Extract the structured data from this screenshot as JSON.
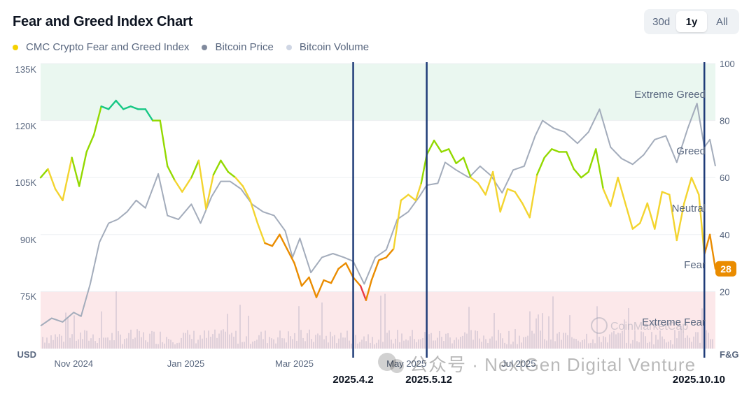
{
  "header": {
    "title": "Fear and Greed Index Chart",
    "ranges": [
      "30d",
      "1y",
      "All"
    ],
    "active_range": "1y"
  },
  "legend": [
    {
      "label": "CMC Crypto Fear and Greed Index",
      "color": "#f5d100"
    },
    {
      "label": "Bitcoin Price",
      "color": "#808a9d"
    },
    {
      "label": "Bitcoin Volume",
      "color": "#cfd6e4"
    }
  ],
  "chart_data": {
    "type": "line",
    "left_axis": {
      "unit": "USD",
      "ticks": [
        "135K",
        "120K",
        "105K",
        "90K",
        "75K"
      ],
      "range": [
        60000,
        135000
      ]
    },
    "right_axis": {
      "unit": "F&G",
      "ticks": [
        "100",
        "80",
        "60",
        "40",
        "20"
      ],
      "range": [
        0,
        100
      ]
    },
    "x_ticks": [
      {
        "label": "Nov 2024",
        "date": "2024-11-01"
      },
      {
        "label": "Jan 2025",
        "date": "2025-01-01"
      },
      {
        "label": "Mar 2025",
        "date": "2025-03-01"
      },
      {
        "label": "May 2025",
        "date": "2025-05-01"
      },
      {
        "label": "Jul 2025",
        "date": "2025-07-01"
      }
    ],
    "x_range": [
      "2024-10-14",
      "2025-10-16"
    ],
    "zones": [
      {
        "label": "Extreme Greed",
        "from": 80,
        "to": 100,
        "color": "#eaf7f0"
      },
      {
        "label": "Greed",
        "from": 60,
        "to": 80,
        "color": "#ffffff"
      },
      {
        "label": "Neutral",
        "from": 40,
        "to": 60,
        "color": "#ffffff"
      },
      {
        "label": "Fear",
        "from": 20,
        "to": 40,
        "color": "#ffffff"
      },
      {
        "label": "Extreme Fear",
        "from": 0,
        "to": 20,
        "color": "#fce8ea"
      }
    ],
    "current_value": "28",
    "series": [
      {
        "name": "CMC Crypto Fear and Greed Index",
        "axis": "right",
        "points": [
          [
            "2024-10-14",
            60
          ],
          [
            "2024-10-18",
            63
          ],
          [
            "2024-10-22",
            56
          ],
          [
            "2024-10-26",
            52
          ],
          [
            "2024-10-31",
            67
          ],
          [
            "2024-11-04",
            57
          ],
          [
            "2024-11-08",
            69
          ],
          [
            "2024-11-12",
            75
          ],
          [
            "2024-11-16",
            85
          ],
          [
            "2024-11-20",
            84
          ],
          [
            "2024-11-24",
            87
          ],
          [
            "2024-11-28",
            84
          ],
          [
            "2024-12-02",
            85
          ],
          [
            "2024-12-06",
            84
          ],
          [
            "2024-12-10",
            84
          ],
          [
            "2024-12-14",
            80
          ],
          [
            "2024-12-18",
            80
          ],
          [
            "2024-12-22",
            64
          ],
          [
            "2024-12-26",
            59
          ],
          [
            "2024-12-30",
            55
          ],
          [
            "2025-01-04",
            60
          ],
          [
            "2025-01-08",
            66
          ],
          [
            "2025-01-12",
            49
          ],
          [
            "2025-01-16",
            61
          ],
          [
            "2025-01-20",
            66
          ],
          [
            "2025-01-24",
            62
          ],
          [
            "2025-01-28",
            60
          ],
          [
            "2025-02-01",
            57
          ],
          [
            "2025-02-05",
            52
          ],
          [
            "2025-02-09",
            44
          ],
          [
            "2025-02-13",
            37
          ],
          [
            "2025-02-17",
            36
          ],
          [
            "2025-02-21",
            40
          ],
          [
            "2025-02-25",
            35
          ],
          [
            "2025-03-01",
            30
          ],
          [
            "2025-03-05",
            22
          ],
          [
            "2025-03-09",
            25
          ],
          [
            "2025-03-13",
            18
          ],
          [
            "2025-03-17",
            24
          ],
          [
            "2025-03-21",
            23
          ],
          [
            "2025-03-25",
            28
          ],
          [
            "2025-03-29",
            30
          ],
          [
            "2025-04-02",
            25
          ],
          [
            "2025-04-06",
            22
          ],
          [
            "2025-04-09",
            17
          ],
          [
            "2025-04-12",
            24
          ],
          [
            "2025-04-16",
            31
          ],
          [
            "2025-04-20",
            32
          ],
          [
            "2025-04-24",
            35
          ],
          [
            "2025-04-28",
            52
          ],
          [
            "2025-05-02",
            54
          ],
          [
            "2025-05-06",
            52
          ],
          [
            "2025-05-09",
            58
          ],
          [
            "2025-05-12",
            68
          ],
          [
            "2025-05-16",
            73
          ],
          [
            "2025-05-20",
            69
          ],
          [
            "2025-05-24",
            70
          ],
          [
            "2025-05-28",
            65
          ],
          [
            "2025-06-01",
            67
          ],
          [
            "2025-06-05",
            60
          ],
          [
            "2025-06-09",
            58
          ],
          [
            "2025-06-13",
            54
          ],
          [
            "2025-06-17",
            62
          ],
          [
            "2025-06-21",
            48
          ],
          [
            "2025-06-25",
            56
          ],
          [
            "2025-06-29",
            55
          ],
          [
            "2025-07-03",
            51
          ],
          [
            "2025-07-07",
            46
          ],
          [
            "2025-07-11",
            61
          ],
          [
            "2025-07-15",
            67
          ],
          [
            "2025-07-19",
            70
          ],
          [
            "2025-07-23",
            69
          ],
          [
            "2025-07-27",
            69
          ],
          [
            "2025-07-31",
            63
          ],
          [
            "2025-08-04",
            60
          ],
          [
            "2025-08-08",
            62
          ],
          [
            "2025-08-12",
            70
          ],
          [
            "2025-08-16",
            56
          ],
          [
            "2025-08-20",
            50
          ],
          [
            "2025-08-24",
            60
          ],
          [
            "2025-08-28",
            51
          ],
          [
            "2025-09-01",
            42
          ],
          [
            "2025-09-05",
            44
          ],
          [
            "2025-09-09",
            51
          ],
          [
            "2025-09-13",
            42
          ],
          [
            "2025-09-17",
            55
          ],
          [
            "2025-09-21",
            54
          ],
          [
            "2025-09-25",
            38
          ],
          [
            "2025-09-29",
            51
          ],
          [
            "2025-10-03",
            60
          ],
          [
            "2025-10-07",
            54
          ],
          [
            "2025-10-10",
            33
          ],
          [
            "2025-10-13",
            40
          ],
          [
            "2025-10-16",
            28
          ]
        ]
      },
      {
        "name": "Bitcoin Price",
        "axis": "left",
        "points": [
          [
            "2024-10-14",
            66000
          ],
          [
            "2024-10-20",
            68000
          ],
          [
            "2024-10-26",
            67000
          ],
          [
            "2024-11-01",
            69500
          ],
          [
            "2024-11-05",
            68500
          ],
          [
            "2024-11-10",
            77000
          ],
          [
            "2024-11-15",
            88000
          ],
          [
            "2024-11-20",
            93000
          ],
          [
            "2024-11-25",
            94000
          ],
          [
            "2024-11-30",
            96000
          ],
          [
            "2024-12-05",
            99000
          ],
          [
            "2024-12-10",
            97000
          ],
          [
            "2024-12-17",
            106000
          ],
          [
            "2024-12-22",
            95000
          ],
          [
            "2024-12-28",
            94000
          ],
          [
            "2025-01-04",
            98000
          ],
          [
            "2025-01-09",
            93000
          ],
          [
            "2025-01-15",
            100000
          ],
          [
            "2025-01-20",
            104000
          ],
          [
            "2025-01-25",
            104000
          ],
          [
            "2025-01-31",
            102000
          ],
          [
            "2025-02-06",
            98000
          ],
          [
            "2025-02-12",
            96000
          ],
          [
            "2025-02-18",
            95000
          ],
          [
            "2025-02-24",
            91000
          ],
          [
            "2025-02-28",
            84000
          ],
          [
            "2025-03-04",
            89000
          ],
          [
            "2025-03-10",
            80000
          ],
          [
            "2025-03-16",
            84000
          ],
          [
            "2025-03-22",
            85000
          ],
          [
            "2025-03-28",
            84000
          ],
          [
            "2025-04-02",
            83000
          ],
          [
            "2025-04-08",
            77000
          ],
          [
            "2025-04-14",
            84000
          ],
          [
            "2025-04-20",
            86000
          ],
          [
            "2025-04-26",
            94000
          ],
          [
            "2025-05-02",
            96000
          ],
          [
            "2025-05-08",
            100000
          ],
          [
            "2025-05-12",
            103000
          ],
          [
            "2025-05-18",
            103500
          ],
          [
            "2025-05-22",
            109000
          ],
          [
            "2025-05-28",
            107000
          ],
          [
            "2025-06-04",
            105000
          ],
          [
            "2025-06-10",
            108000
          ],
          [
            "2025-06-16",
            105500
          ],
          [
            "2025-06-22",
            101000
          ],
          [
            "2025-06-28",
            107000
          ],
          [
            "2025-07-04",
            108000
          ],
          [
            "2025-07-10",
            116000
          ],
          [
            "2025-07-14",
            120000
          ],
          [
            "2025-07-20",
            118000
          ],
          [
            "2025-07-26",
            117000
          ],
          [
            "2025-08-02",
            114000
          ],
          [
            "2025-08-08",
            117000
          ],
          [
            "2025-08-14",
            123000
          ],
          [
            "2025-08-20",
            113000
          ],
          [
            "2025-08-26",
            110000
          ],
          [
            "2025-09-01",
            108500
          ],
          [
            "2025-09-07",
            111000
          ],
          [
            "2025-09-13",
            115000
          ],
          [
            "2025-09-19",
            116000
          ],
          [
            "2025-09-25",
            109000
          ],
          [
            "2025-10-01",
            118000
          ],
          [
            "2025-10-06",
            124500
          ],
          [
            "2025-10-10",
            113000
          ],
          [
            "2025-10-13",
            115000
          ],
          [
            "2025-10-16",
            108000
          ]
        ]
      }
    ],
    "annotations": [
      {
        "label": "2025.4.2",
        "date": "2025-04-02"
      },
      {
        "label": "2025.5.12",
        "date": "2025-05-12"
      },
      {
        "label": "2025.10.10",
        "date": "2025-10-10"
      }
    ]
  },
  "watermarks": {
    "brand": "CoinMarketCap",
    "channel": "公众号 · NextGen Digital Venture"
  }
}
